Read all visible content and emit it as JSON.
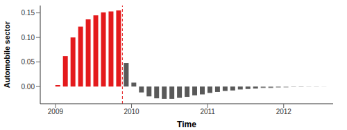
{
  "chart_data": {
    "type": "bar",
    "x_label": "Time",
    "y_label": "Automobile sector",
    "x": [
      2009.03,
      2009.13,
      2009.23,
      2009.33,
      2009.43,
      2009.53,
      2009.63,
      2009.73,
      2009.83,
      2009.93,
      2010.03,
      2010.13,
      2010.23,
      2010.33,
      2010.43,
      2010.53,
      2010.63,
      2010.73,
      2010.83,
      2010.93,
      2011.03,
      2011.13,
      2011.23,
      2011.33,
      2011.43,
      2011.53,
      2011.63,
      2011.73,
      2011.83,
      2011.93,
      2012.03,
      2012.13,
      2012.23,
      2012.33,
      2012.43,
      2012.53
    ],
    "values": [
      0.003,
      0.062,
      0.1,
      0.122,
      0.137,
      0.145,
      0.151,
      0.153,
      0.155,
      0.048,
      0.008,
      -0.012,
      -0.02,
      -0.024,
      -0.025,
      -0.025,
      -0.023,
      -0.021,
      -0.018,
      -0.016,
      -0.013,
      -0.011,
      -0.009,
      -0.008,
      -0.006,
      -0.005,
      -0.004,
      -0.003,
      -0.003,
      -0.002,
      -0.002,
      -0.001,
      -0.001,
      -0.001,
      -0.001,
      -0.0005
    ],
    "colors": [
      "#e41a1c",
      "#e41a1c",
      "#e41a1c",
      "#e41a1c",
      "#e41a1c",
      "#e41a1c",
      "#e41a1c",
      "#e41a1c",
      "#e41a1c",
      "#595959",
      "#595959",
      "#595959",
      "#595959",
      "#595959",
      "#595959",
      "#595959",
      "#595959",
      "#595959",
      "#595959",
      "#595959",
      "#595959",
      "#595959",
      "#595959",
      "#595959",
      "#595959",
      "#595959",
      "#595959",
      "#888888",
      "#888888",
      "#888888",
      "#aaaaaa",
      "#aaaaaa",
      "#aaaaaa",
      "#cccccc",
      "#cccccc",
      "#cccccc"
    ],
    "reference_line": 2009.88,
    "xlim": [
      2008.8,
      2012.65
    ],
    "xticks": [
      2009,
      2010,
      2011,
      2012
    ],
    "ylim": [
      -0.035,
      0.165
    ],
    "yticks": [
      {
        "value": 0,
        "label": "0.00"
      },
      {
        "value": 0.05,
        "label": "0.05"
      },
      {
        "value": 0.1,
        "label": "0.10"
      },
      {
        "value": 0.15,
        "label": "0.15"
      }
    ],
    "grid": false
  }
}
